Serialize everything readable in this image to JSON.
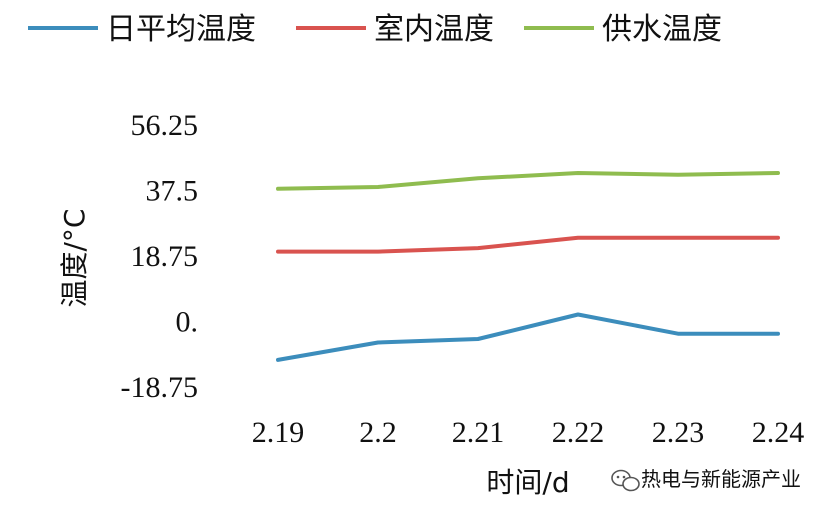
{
  "chart_data": {
    "type": "line",
    "title": "",
    "xlabel": "时间/d",
    "ylabel": "温度/°C",
    "categories": [
      "2.19",
      "2.2",
      "2.21",
      "2.22",
      "2.23",
      "2.24"
    ],
    "yticks": [
      "56.25",
      "37.5",
      "18.75",
      "0.",
      "-18.75"
    ],
    "ylim": [
      -18.75,
      56.25
    ],
    "legend_position": "top",
    "grid": false,
    "series": [
      {
        "name": "日平均温度",
        "color": "#3c8dbc",
        "values": [
          -11,
          -6,
          -5,
          2,
          -3.5,
          -3.5
        ]
      },
      {
        "name": "室内温度",
        "color": "#d9534f",
        "values": [
          20,
          20,
          21,
          24,
          24,
          24
        ]
      },
      {
        "name": "供水温度",
        "color": "#8fbc4f",
        "values": [
          38,
          38.5,
          41,
          42.5,
          42,
          42.5
        ]
      }
    ]
  },
  "watermark": {
    "icon": "wechat-icon",
    "text": "热电与新能源产业"
  }
}
